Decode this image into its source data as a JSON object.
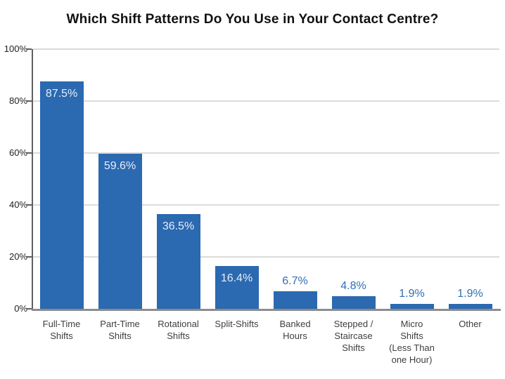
{
  "chart_data": {
    "type": "bar",
    "title": "Which Shift Patterns Do You Use in Your Contact Centre?",
    "categories": [
      "Full-Time Shifts",
      "Part-Time Shifts",
      "Rotational Shifts",
      "Split-Shifts",
      "Banked Hours",
      "Stepped / Staircase Shifts",
      "Micro Shifts (Less Than one Hour)",
      "Other"
    ],
    "category_lines": [
      [
        "Full-Time",
        "Shifts"
      ],
      [
        "Part-Time",
        "Shifts"
      ],
      [
        "Rotational",
        "Shifts"
      ],
      [
        "Split-Shifts"
      ],
      [
        "Banked",
        "Hours"
      ],
      [
        "Stepped /",
        "Staircase",
        "Shifts"
      ],
      [
        "Micro",
        "Shifts",
        "(Less Than",
        "one Hour)"
      ],
      [
        "Other"
      ]
    ],
    "values": [
      87.5,
      59.6,
      36.5,
      16.4,
      6.7,
      4.8,
      1.9,
      1.9
    ],
    "value_labels": [
      "87.5%",
      "59.6%",
      "36.5%",
      "16.4%",
      "6.7%",
      "4.8%",
      "1.9%",
      "1.9%"
    ],
    "value_label_placement": [
      "inside",
      "inside",
      "inside",
      "inside",
      "above",
      "above",
      "above",
      "above"
    ],
    "xlabel": "",
    "ylabel": "",
    "ylim": [
      0,
      100
    ],
    "y_ticks": [
      "0%",
      "20%",
      "40%",
      "60%",
      "80%",
      "100%"
    ],
    "y_tick_values": [
      0,
      20,
      40,
      60,
      80,
      100
    ],
    "grid": "horizontal",
    "legend": "none",
    "colors": {
      "bar": "#2B69B1",
      "value_label_inside": "#E8EEF6",
      "value_label_outside": "#2F6FB5",
      "gridline": "#DBDBDB",
      "y_axis_line": "#5F5F5F",
      "x_axis_line": "#8C8C8C",
      "tick_label": "#222222",
      "category_label": "#3E3E3E",
      "title": "#111111",
      "background": "#FFFFFF"
    }
  }
}
